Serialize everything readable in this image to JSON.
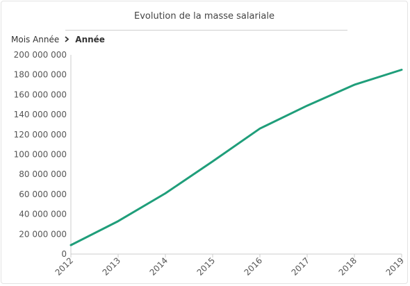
{
  "chart_data": {
    "type": "line",
    "title": "Evolution de la masse salariale",
    "breadcrumb": [
      "Mois Année",
      "Année"
    ],
    "xlabel": "",
    "ylabel": "",
    "ylim": [
      0,
      200000000
    ],
    "yticks": [
      0,
      20000000,
      40000000,
      60000000,
      80000000,
      100000000,
      120000000,
      140000000,
      160000000,
      180000000,
      200000000
    ],
    "ytick_labels": [
      "0",
      "20 000 000",
      "40 000 000",
      "60 000 000",
      "80 000 000",
      "100 000 000",
      "120 000 000",
      "140 000 000",
      "160 000 000",
      "180 000 000",
      "200 000 000"
    ],
    "categories": [
      "2012",
      "2013",
      "2014",
      "2015",
      "2016",
      "2017",
      "2018",
      "2019"
    ],
    "series": [
      {
        "values": [
          9000000,
          33000000,
          61000000,
          93000000,
          126000000,
          149000000,
          170000000,
          185000000
        ],
        "color": "#1f9e7a"
      }
    ],
    "grid": false,
    "legend": "none"
  }
}
